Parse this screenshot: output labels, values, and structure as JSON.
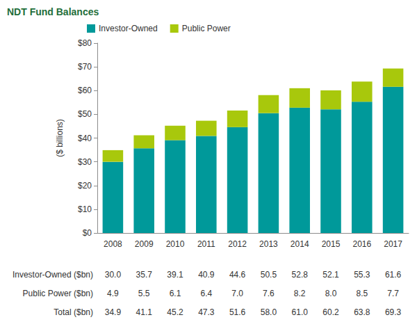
{
  "chart_data": {
    "type": "bar",
    "title": "NDT Fund Balances",
    "y_label": "($ billions)",
    "categories": [
      "2008",
      "2009",
      "2010",
      "2011",
      "2012",
      "2013",
      "2014",
      "2015",
      "2016",
      "2017"
    ],
    "series": [
      {
        "name": "Investor-Owned",
        "color": "#00999A",
        "values": [
          30.0,
          35.7,
          39.1,
          40.9,
          44.6,
          50.5,
          52.8,
          52.1,
          55.3,
          61.6
        ]
      },
      {
        "name": "Public Power",
        "color": "#A8C80C",
        "values": [
          4.9,
          5.5,
          6.1,
          6.4,
          7.0,
          7.6,
          8.2,
          8.0,
          8.5,
          7.7
        ]
      }
    ],
    "stacked": true,
    "ylim": [
      0,
      80
    ],
    "yticks": [
      {
        "value": 0,
        "label": "$0"
      },
      {
        "value": 10,
        "label": "$10"
      },
      {
        "value": 20,
        "label": "$20"
      },
      {
        "value": 30,
        "label": "$30"
      },
      {
        "value": 40,
        "label": "$40"
      },
      {
        "value": 50,
        "label": "$50"
      },
      {
        "value": 60,
        "label": "$60"
      },
      {
        "value": 70,
        "label": "$70"
      },
      {
        "value": 80,
        "label": "$80"
      }
    ],
    "grid": false,
    "legend": "top"
  },
  "table": {
    "rows": [
      {
        "label": "Investor-Owned ($bn)",
        "cells": [
          "30.0",
          "35.7",
          "39.1",
          "40.9",
          "44.6",
          "50.5",
          "52.8",
          "52.1",
          "55.3",
          "61.6"
        ]
      },
      {
        "label": "Public Power ($bn)",
        "cells": [
          "4.9",
          "5.5",
          "6.1",
          "6.4",
          "7.0",
          "7.6",
          "8.2",
          "8.0",
          "8.5",
          "7.7"
        ]
      },
      {
        "label": "Total ($bn)",
        "cells": [
          "34.9",
          "41.1",
          "45.2",
          "47.3",
          "51.6",
          "58.0",
          "61.0",
          "60.2",
          "63.8",
          "69.3"
        ]
      }
    ]
  }
}
